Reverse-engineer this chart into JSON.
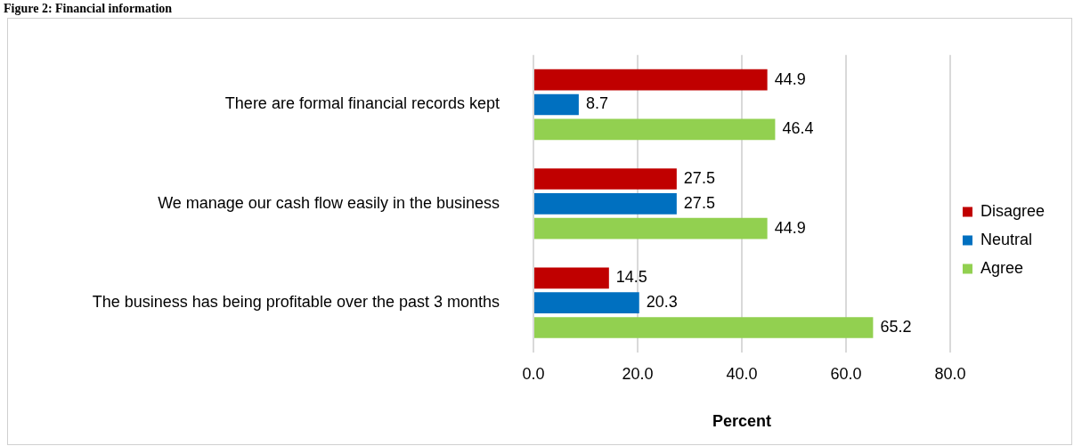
{
  "chart_data": {
    "type": "bar",
    "orientation": "horizontal",
    "title": "Figure 2: Financial information",
    "categories": [
      "There are formal financial records kept",
      "We manage our cash flow easily in the business",
      "The business has being profitable over the past 3 months"
    ],
    "series": [
      {
        "name": "Disagree",
        "color": "#c00000",
        "values": [
          44.9,
          27.5,
          14.5
        ]
      },
      {
        "name": "Neutral",
        "color": "#0070c0",
        "values": [
          8.7,
          27.5,
          20.3
        ]
      },
      {
        "name": "Agree",
        "color": "#92d050",
        "values": [
          46.4,
          44.9,
          65.2
        ]
      }
    ],
    "xlabel": "Percent",
    "xlim": [
      0,
      80
    ],
    "xticks": [
      {
        "value": 0,
        "label": "0.0"
      },
      {
        "value": 20,
        "label": "20.0"
      },
      {
        "value": 40,
        "label": "40.0"
      },
      {
        "value": 60,
        "label": "60.0"
      },
      {
        "value": 80,
        "label": "80.0"
      }
    ],
    "grid": "x",
    "legend": "right",
    "data_labels": true
  }
}
